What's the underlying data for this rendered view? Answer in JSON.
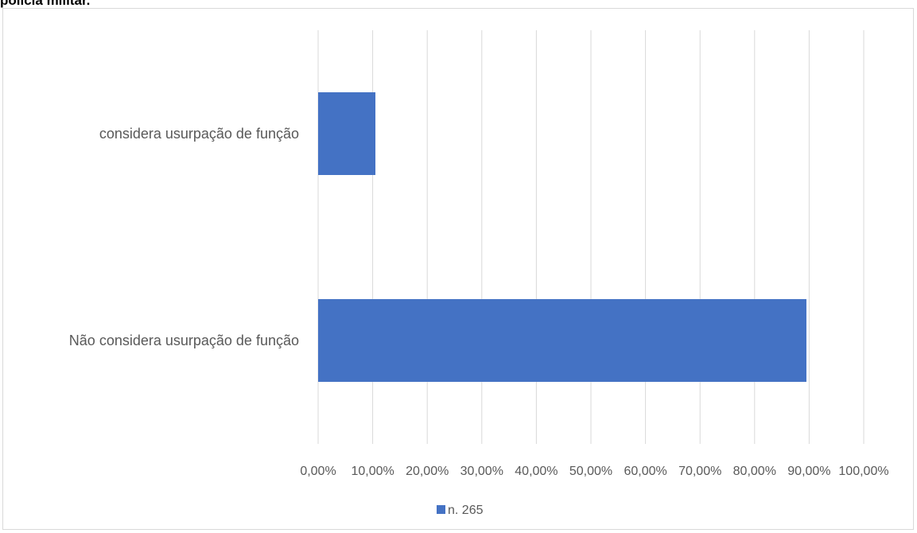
{
  "header": {
    "title_fragment": "polícia militar."
  },
  "chart_data": {
    "type": "bar",
    "orientation": "horizontal",
    "categories": [
      "considera usurpação de função",
      "Não considera usurpação de função"
    ],
    "series": [
      {
        "name": "n. 265",
        "values": [
          0.105,
          0.895
        ],
        "color": "#4472c4"
      }
    ],
    "xlim": [
      0,
      1
    ],
    "x_ticks": [
      0,
      0.1,
      0.2,
      0.3,
      0.4,
      0.5,
      0.6,
      0.7,
      0.8,
      0.9,
      1.0
    ],
    "x_tick_labels": [
      "0,00%",
      "10,00%",
      "20,00%",
      "30,00%",
      "40,00%",
      "50,00%",
      "60,00%",
      "70,00%",
      "80,00%",
      "90,00%",
      "100,00%"
    ],
    "grid": true,
    "legend_position": "bottom",
    "title": "",
    "xlabel": "",
    "ylabel": ""
  }
}
